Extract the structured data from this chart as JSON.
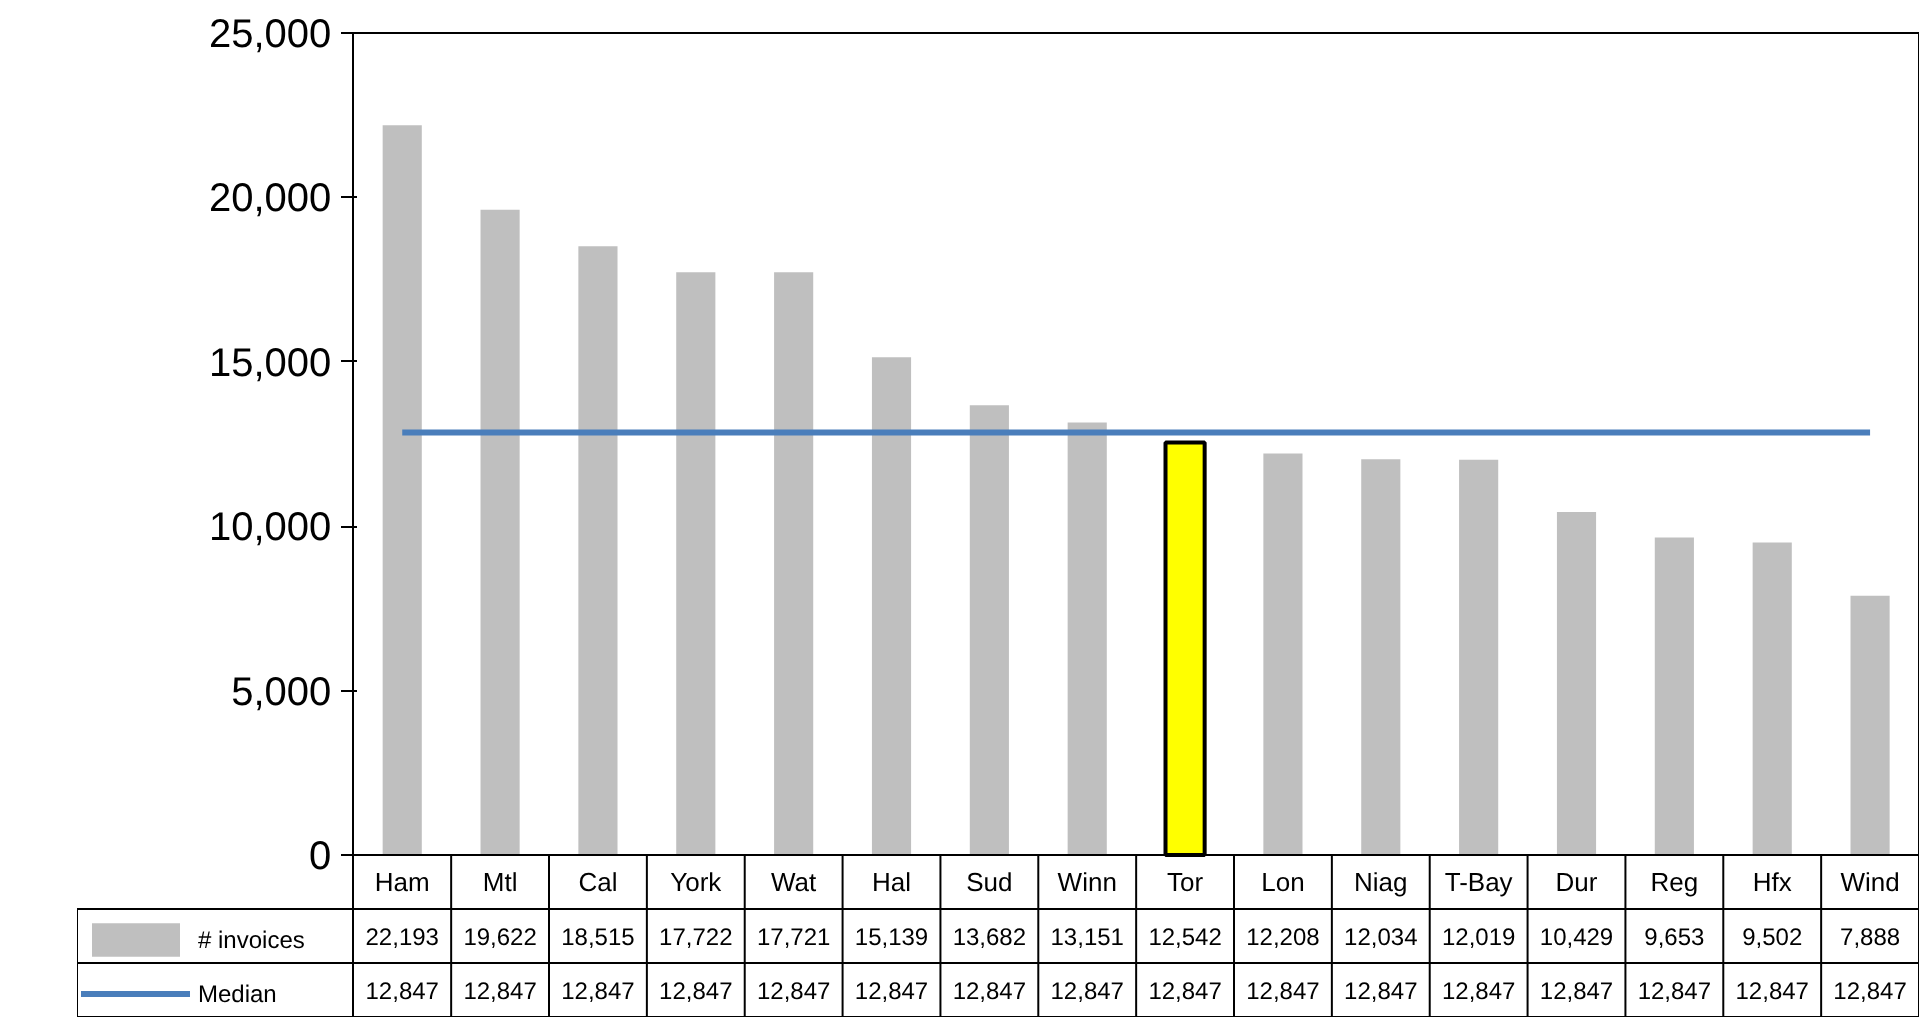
{
  "chart_data": {
    "type": "bar",
    "categories": [
      "Ham",
      "Mtl",
      "Cal",
      "York",
      "Wat",
      "Hal",
      "Sud",
      "Winn",
      "Tor",
      "Lon",
      "Niag",
      "T-Bay",
      "Dur",
      "Reg",
      "Hfx",
      "Wind"
    ],
    "series": [
      {
        "name": "# invoices",
        "color": "#bfbfbf",
        "colors": [
          "#bfbfbf",
          "#bfbfbf",
          "#bfbfbf",
          "#bfbfbf",
          "#bfbfbf",
          "#bfbfbf",
          "#bfbfbf",
          "#bfbfbf",
          "#ffff00",
          "#bfbfbf",
          "#bfbfbf",
          "#bfbfbf",
          "#bfbfbf",
          "#bfbfbf",
          "#bfbfbf",
          "#bfbfbf"
        ],
        "values": [
          22193,
          19622,
          18515,
          17722,
          17721,
          15139,
          13682,
          13151,
          12542,
          12208,
          12034,
          12019,
          10429,
          9653,
          9502,
          7888
        ],
        "value_labels": [
          "22,193",
          "19,622",
          "18,515",
          "17,722",
          "17,721",
          "15,139",
          "13,682",
          "13,151",
          "12,542",
          "12,208",
          "12,034",
          "12,019",
          "10,429",
          "9,653",
          "9,502",
          "7,888"
        ]
      },
      {
        "name": "Median",
        "type": "line",
        "color": "#4a7ebb",
        "values": [
          12847,
          12847,
          12847,
          12847,
          12847,
          12847,
          12847,
          12847,
          12847,
          12847,
          12847,
          12847,
          12847,
          12847,
          12847,
          12847
        ],
        "value_labels": [
          "12,847",
          "12,847",
          "12,847",
          "12,847",
          "12,847",
          "12,847",
          "12,847",
          "12,847",
          "12,847",
          "12,847",
          "12,847",
          "12,847",
          "12,847",
          "12,847",
          "12,847",
          "12,847"
        ]
      }
    ],
    "ylim": [
      0,
      25000
    ],
    "yticks": [
      {
        "value": 0,
        "label": "0"
      },
      {
        "value": 5000,
        "label": "5,000"
      },
      {
        "value": 10000,
        "label": "10,000"
      },
      {
        "value": 15000,
        "label": "15,000"
      },
      {
        "value": 20000,
        "label": "20,000"
      },
      {
        "value": 25000,
        "label": "25,000"
      }
    ],
    "grid": false,
    "legend": "bottom left"
  }
}
